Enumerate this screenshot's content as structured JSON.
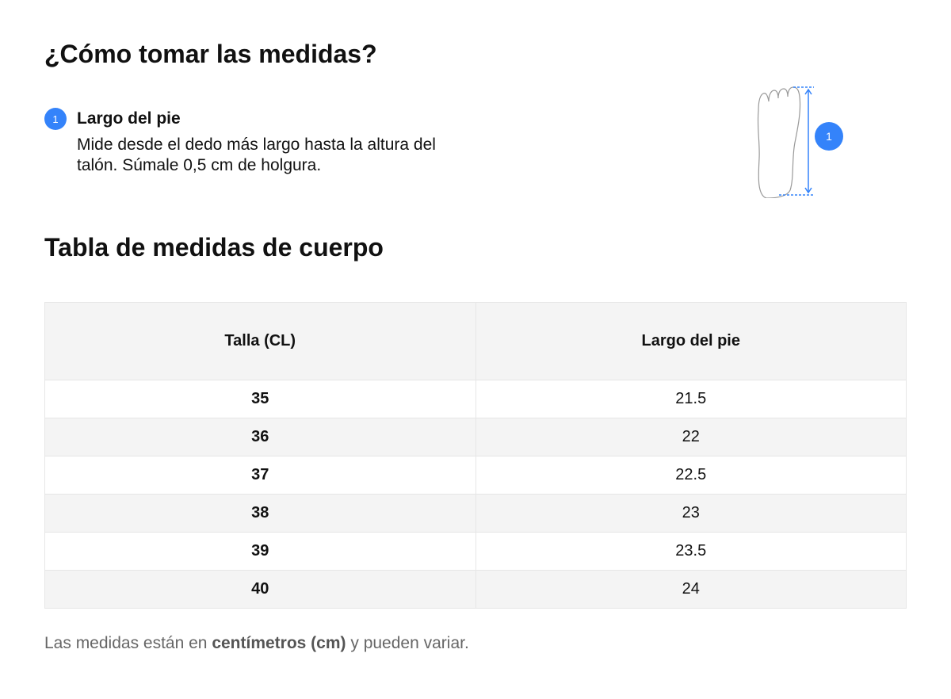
{
  "title": "¿Cómo tomar las medidas?",
  "step": {
    "number": "1",
    "title": "Largo del pie",
    "description": "Mide desde el dedo más largo hasta la altura del talón. Súmale 0,5 cm de holgura."
  },
  "illustration": {
    "icon": "foot-icon",
    "marker": "1",
    "accent": "#3483fa"
  },
  "table_title": "Tabla de medidas de cuerpo",
  "table": {
    "headers": [
      "Talla (CL)",
      "Largo del pie"
    ],
    "rows": [
      [
        "35",
        "21.5"
      ],
      [
        "36",
        "22"
      ],
      [
        "37",
        "22.5"
      ],
      [
        "38",
        "23"
      ],
      [
        "39",
        "23.5"
      ],
      [
        "40",
        "24"
      ]
    ]
  },
  "note": {
    "before": "Las medidas están en ",
    "bold": "centímetros (cm)",
    "after": " y pueden variar."
  }
}
